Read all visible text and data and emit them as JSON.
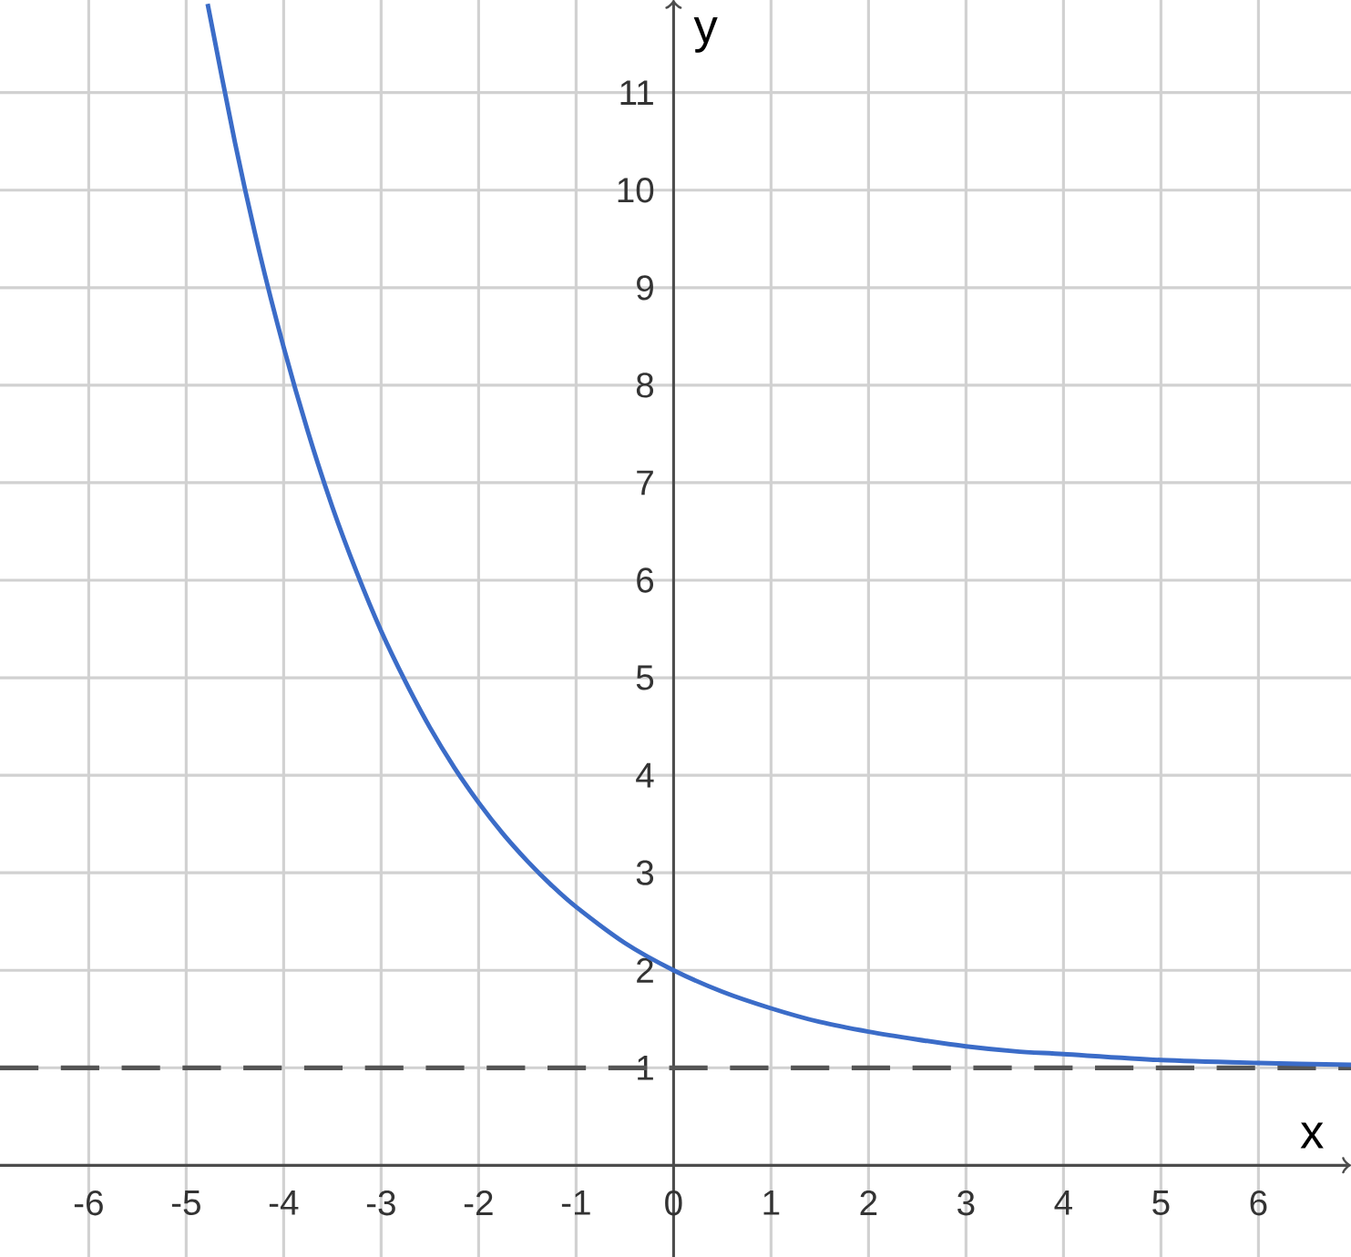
{
  "chart_data": {
    "type": "line",
    "xlabel": "x",
    "ylabel": "y",
    "x": [
      -4.78,
      -4.5,
      -4.25,
      -4,
      -3.75,
      -3.5,
      -3.25,
      -3,
      -2.75,
      -2.5,
      -2.25,
      -2,
      -1.75,
      -1.5,
      -1.25,
      -1,
      -0.5,
      0,
      0.5,
      1,
      1.5,
      2,
      2.5,
      3,
      3.5,
      4,
      5,
      6,
      6.95
    ],
    "values": [
      11.91,
      10.49,
      9.37,
      8.39,
      7.52,
      6.75,
      6.08,
      5.48,
      4.96,
      4.49,
      4.08,
      3.72,
      3.4,
      3.12,
      2.87,
      2.65,
      2.28,
      2,
      1.78,
      1.61,
      1.47,
      1.37,
      1.29,
      1.22,
      1.17,
      1.14,
      1.08,
      1.05,
      1.03
    ],
    "color": "#3b6cc8",
    "xlim": [
      -6.91,
      6.95
    ],
    "ylim": [
      -0.94,
      11.95
    ],
    "xticks": [
      -6,
      -5,
      -4,
      -3,
      -2,
      -1,
      0,
      1,
      2,
      3,
      4,
      5,
      6
    ],
    "yticks": [
      1,
      2,
      3,
      4,
      5,
      6,
      7,
      8,
      9,
      10,
      11
    ],
    "grid": true,
    "marker": "none",
    "ref_lines": [
      {
        "axis": "y",
        "value": 1,
        "color": "#555555",
        "line_style": "dashed"
      }
    ]
  }
}
